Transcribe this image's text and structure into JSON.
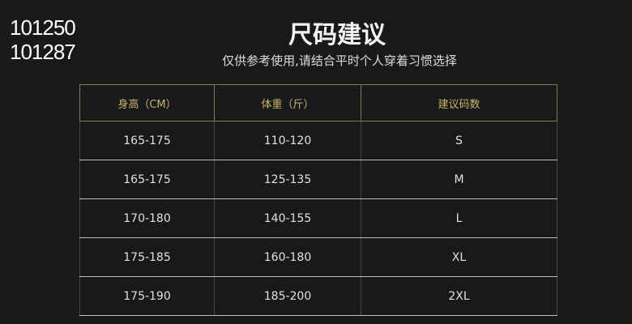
{
  "overlay_number": "101250",
  "overlay_number_ghost": "101287",
  "title": "尺码建议",
  "subtitle": "仅供参考使用,请结合平时个人穿着习惯选择",
  "table": {
    "headers": [
      "身高（CM）",
      "体重（斤）",
      "建议码数"
    ],
    "rows": [
      [
        "165-175",
        "110-120",
        "S"
      ],
      [
        "165-175",
        "125-135",
        "M"
      ],
      [
        "170-180",
        "140-155",
        "L"
      ],
      [
        "175-185",
        "160-180",
        "XL"
      ],
      [
        "175-190",
        "185-200",
        "2XL"
      ]
    ]
  },
  "colors": {
    "background": "#18191b",
    "header_text": "#c9b46a",
    "header_border": "#8a7a45"
  }
}
